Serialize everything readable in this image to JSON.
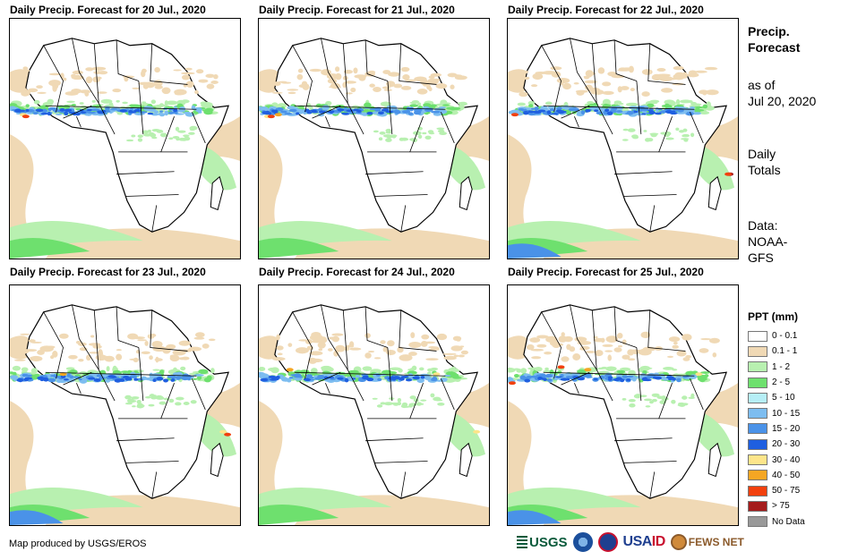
{
  "maps": [
    {
      "title": "Daily Precip. Forecast for 20 Jul., 2020"
    },
    {
      "title": "Daily Precip. Forecast for 21 Jul., 2020"
    },
    {
      "title": "Daily Precip. Forecast for 22 Jul., 2020"
    },
    {
      "title": "Daily Precip. Forecast for 23 Jul., 2020"
    },
    {
      "title": "Daily Precip. Forecast for 24 Jul., 2020"
    },
    {
      "title": "Daily Precip. Forecast for 25 Jul., 2020"
    }
  ],
  "sidebar": {
    "heading1": "Precip.",
    "heading2": "Forecast",
    "asof1": "as of",
    "asof2": "Jul 20, 2020",
    "daily1": "Daily",
    "daily2": "Totals",
    "data1": "Data:",
    "data2": "NOAA-",
    "data3": "GFS"
  },
  "legend": {
    "title": "PPT (mm)",
    "items": [
      {
        "label": "0 - 0.1",
        "color": "#ffffff"
      },
      {
        "label": "0.1 - 1",
        "color": "#f0d9b5"
      },
      {
        "label": "1 - 2",
        "color": "#b8f0b0"
      },
      {
        "label": "2 - 5",
        "color": "#6ee06e"
      },
      {
        "label": "5 - 10",
        "color": "#b6eef6"
      },
      {
        "label": "10 - 15",
        "color": "#7dbdf0"
      },
      {
        "label": "15 - 20",
        "color": "#4a92e8"
      },
      {
        "label": "20 - 30",
        "color": "#1f5fe0"
      },
      {
        "label": "30 - 40",
        "color": "#fde58a"
      },
      {
        "label": "40 - 50",
        "color": "#f5a623"
      },
      {
        "label": "50 - 75",
        "color": "#f2400e"
      },
      {
        "label": "> 75",
        "color": "#a51c1c"
      },
      {
        "label": "No Data",
        "color": "#999999"
      }
    ]
  },
  "footer": {
    "credit": "Map produced by USGS/EROS"
  },
  "logos": {
    "usgs": "USGS",
    "usaid_a": "USA",
    "usaid_b": "ID",
    "fews": "FEWS NET"
  }
}
